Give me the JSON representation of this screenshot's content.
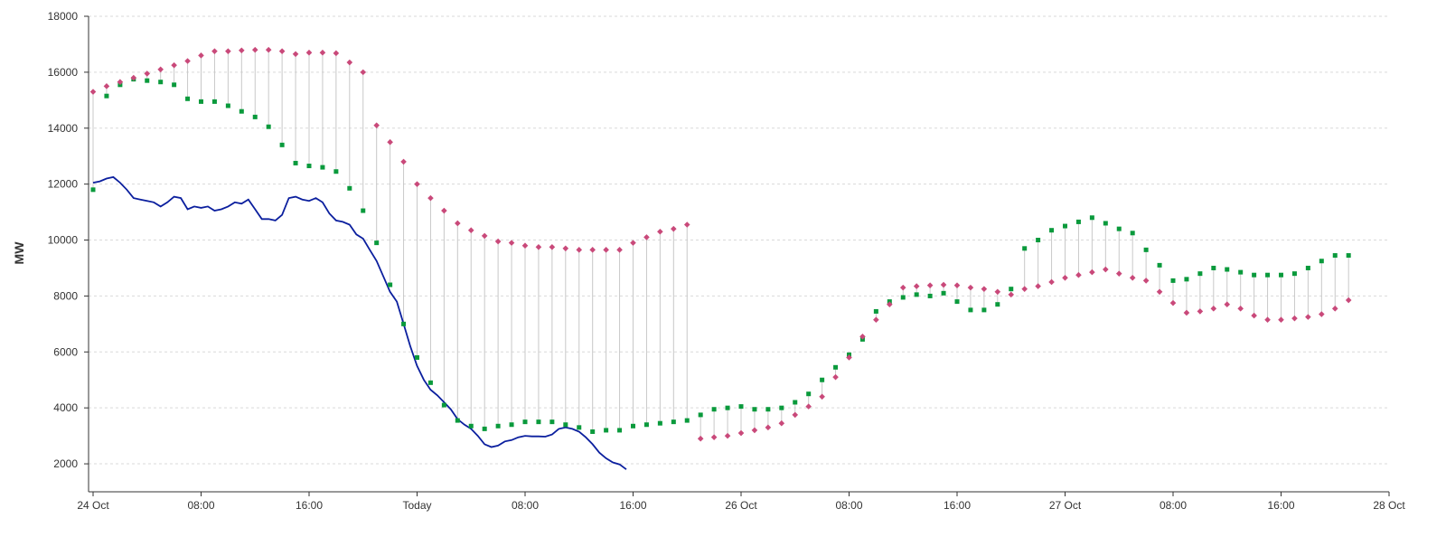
{
  "chart_data": {
    "type": "line",
    "title": "",
    "xlabel": "",
    "ylabel": "MW",
    "ylim": [
      1000,
      18000
    ],
    "yticks": [
      2000,
      4000,
      6000,
      8000,
      10000,
      12000,
      14000,
      16000,
      18000
    ],
    "xlim": [
      0,
      96
    ],
    "xticks": [
      {
        "x": 0,
        "label": "24 Oct"
      },
      {
        "x": 8,
        "label": "08:00"
      },
      {
        "x": 16,
        "label": "16:00"
      },
      {
        "x": 24,
        "label": "Today"
      },
      {
        "x": 32,
        "label": "08:00"
      },
      {
        "x": 40,
        "label": "16:00"
      },
      {
        "x": 48,
        "label": "26 Oct"
      },
      {
        "x": 56,
        "label": "08:00"
      },
      {
        "x": 64,
        "label": "16:00"
      },
      {
        "x": 72,
        "label": "27 Oct"
      },
      {
        "x": 80,
        "label": "08:00"
      },
      {
        "x": 88,
        "label": "16:00"
      },
      {
        "x": 96,
        "label": "28 Oct"
      }
    ],
    "grid": true,
    "colors": {
      "actual": "#0b1f9e",
      "pink": "#c9497a",
      "green": "#0a9a3c",
      "spread": "#c8c8c8"
    },
    "series": [
      {
        "marker": "diamond",
        "x": [
          0,
          1,
          2,
          3,
          4,
          5,
          6,
          7,
          8,
          9,
          10,
          11,
          12,
          13,
          14,
          15,
          16,
          17,
          18,
          19,
          20,
          21,
          22,
          23,
          24,
          25,
          26,
          27,
          28,
          29,
          30,
          31,
          32,
          33,
          34,
          35,
          36,
          37,
          38,
          39,
          40,
          41,
          42,
          43,
          44,
          45,
          46,
          47,
          48,
          49,
          50,
          51,
          52,
          53,
          54,
          55,
          56,
          57,
          58,
          59,
          60,
          61,
          62,
          63,
          64,
          65,
          66,
          67,
          68,
          69,
          70,
          71,
          72,
          73,
          74,
          75,
          76,
          77,
          78,
          79,
          80,
          81,
          82,
          83,
          84,
          85,
          86,
          87,
          88,
          89,
          90,
          91,
          92,
          93
        ],
        "values": [
          15300,
          15500,
          15650,
          15800,
          15950,
          16100,
          16250,
          16400,
          16600,
          16750,
          16750,
          16780,
          16800,
          16800,
          16750,
          16650,
          16700,
          16700,
          16680,
          16350,
          16000,
          14100,
          13500,
          12800,
          12000,
          11500,
          11050,
          10600,
          10350,
          10150,
          9950,
          9900,
          9800,
          9750,
          9750,
          9700,
          9650,
          9650,
          9650,
          9650,
          9900,
          10100,
          10300,
          10400,
          10550,
          null,
          null,
          null,
          null,
          null,
          null,
          null,
          null,
          null,
          null,
          null,
          null,
          null,
          null,
          null,
          null,
          null,
          null,
          null,
          null,
          null,
          null,
          null,
          null,
          null,
          null,
          null,
          null,
          null,
          null,
          null,
          null,
          null,
          null,
          null,
          null,
          null,
          null,
          null,
          null,
          null,
          null,
          null,
          null,
          null,
          null,
          null,
          null,
          null
        ],
        "x2": [
          45,
          46,
          47,
          48,
          49,
          50,
          51,
          52,
          53,
          54,
          55,
          56,
          57,
          58,
          59,
          60,
          61,
          62,
          63,
          64,
          65,
          66,
          67,
          68,
          69,
          70,
          71,
          72,
          73,
          74,
          75,
          76,
          77,
          78,
          79,
          80,
          81,
          82,
          83,
          84,
          85,
          86,
          87,
          88,
          89,
          90,
          91,
          92,
          93
        ],
        "values2": [
          2900,
          2950,
          3000,
          3100,
          3200,
          3300,
          3450,
          3750,
          4050,
          4400,
          5100,
          5800,
          6550,
          7150,
          7700,
          8300,
          8350,
          8380,
          8400,
          8380,
          8300,
          8250,
          8150,
          8050,
          8250,
          8350,
          8500,
          8650,
          8750,
          8850,
          8950,
          8800,
          8650,
          8550,
          8150,
          7750,
          7400,
          7450,
          7550,
          7700,
          7550,
          7300,
          7150,
          7150,
          7200,
          7250,
          7350,
          7550,
          7850
        ]
      },
      {
        "marker": "square",
        "x": [
          0,
          1,
          2,
          3,
          4,
          5,
          6,
          7,
          8,
          9,
          10,
          11,
          12,
          13,
          14,
          15,
          16,
          17,
          18,
          19,
          20,
          21,
          22,
          23,
          24,
          25,
          26,
          27,
          28,
          29,
          30,
          31,
          32,
          33,
          34,
          35,
          36,
          37,
          38,
          39,
          40,
          41,
          42,
          43,
          44,
          45,
          46,
          47,
          48,
          49,
          50,
          51,
          52,
          53,
          54,
          55,
          56,
          57,
          58,
          59,
          60,
          61,
          62,
          63,
          64,
          65,
          66,
          67,
          68,
          69,
          70,
          71,
          72,
          73,
          74,
          75,
          76,
          77,
          78,
          79,
          80,
          81,
          82,
          83,
          84,
          85,
          86,
          87,
          88,
          89,
          90,
          91,
          92,
          93
        ],
        "values": [
          11800,
          15150,
          15550,
          15750,
          15700,
          15650,
          15550,
          15050,
          14950,
          14950,
          14800,
          14600,
          14400,
          14050,
          13400,
          12750,
          12650,
          12600,
          12450,
          11850,
          11050,
          9900,
          8400,
          7000,
          5800,
          4900,
          4100,
          3550,
          3350,
          3250,
          3350,
          3400,
          3500,
          3500,
          3500,
          3400,
          3300,
          3150,
          3200,
          3200,
          3350,
          3400,
          3450,
          3500,
          3550,
          3750,
          3950,
          4000,
          4050,
          3950,
          3950,
          4000,
          4200,
          4500,
          5000,
          5450,
          5900,
          6450,
          7450,
          7800,
          7950,
          8050,
          8000,
          8100,
          7800,
          7500,
          7500,
          7700,
          8250,
          9700,
          10000,
          10350,
          10500,
          10650,
          10800,
          10600,
          10400,
          10250,
          9650,
          9100,
          8550,
          8600,
          8800,
          9000,
          8950,
          8850,
          8750,
          8750,
          8750,
          8800,
          9000,
          9250,
          9450,
          9450
        ]
      },
      {
        "name": "",
        "marker": "line",
        "x": [
          0,
          0.5,
          1,
          1.5,
          2,
          2.5,
          3,
          3.5,
          4,
          4.5,
          5,
          5.5,
          6,
          6.5,
          7,
          7.5,
          8,
          8.5,
          9,
          9.5,
          10,
          10.5,
          11,
          11.5,
          12,
          12.5,
          13,
          13.5,
          14,
          14.5,
          15,
          15.5,
          16,
          16.5,
          17,
          17.5,
          18,
          18.5,
          19,
          19.5,
          20,
          20.5,
          21,
          21.5,
          22,
          22.5,
          23,
          23.5,
          24,
          24.5,
          25,
          25.5,
          26,
          26.5,
          27,
          27.5,
          28,
          28.5,
          29,
          29.5,
          30,
          30.5,
          31,
          31.5,
          32,
          32.5,
          33,
          33.5,
          34,
          34.5,
          35,
          35.5,
          36,
          36.5,
          37,
          37.5,
          38,
          38.5,
          39,
          39.5
        ],
        "values": [
          12050,
          12100,
          12200,
          12250,
          12050,
          11800,
          11500,
          11450,
          11400,
          11350,
          11200,
          11350,
          11550,
          11500,
          11100,
          11200,
          11150,
          11200,
          11050,
          11100,
          11200,
          11350,
          11300,
          11450,
          11100,
          10750,
          10750,
          10700,
          10900,
          11500,
          11550,
          11450,
          11400,
          11500,
          11350,
          10950,
          10700,
          10650,
          10550,
          10200,
          10050,
          9650,
          9250,
          8700,
          8150,
          7800,
          7000,
          6200,
          5500,
          5000,
          4650,
          4450,
          4200,
          3950,
          3600,
          3400,
          3250,
          3000,
          2700,
          2600,
          2650,
          2800,
          2850,
          2950,
          3000,
          2980,
          2980,
          2970,
          3050,
          3250,
          3300,
          3250,
          3150,
          2950,
          2700,
          2400,
          2200,
          2050,
          1980,
          1800
        ]
      }
    ]
  }
}
